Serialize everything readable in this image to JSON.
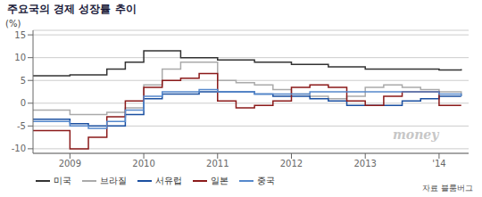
{
  "chart_data": {
    "type": "step",
    "title": "주요국의 경제 성장률 추이",
    "y_label": "(%)",
    "annotations": [
      "자료 블룸버그",
      "money"
    ],
    "xlim": [
      2008.5,
      2014.4
    ],
    "xticks": [
      2009,
      2010,
      2011,
      2012,
      2013,
      {
        "value": 2014,
        "label": "'14"
      }
    ],
    "ylim": [
      -11,
      16
    ],
    "yticks": [
      -10,
      -5,
      0,
      5,
      10,
      15
    ],
    "grid": true,
    "legend": "bottom",
    "series": [
      {
        "name": "미국",
        "color": "#333333",
        "x": [
          2008.5,
          2009.0,
          2009.5,
          2009.75,
          2010.0,
          2010.5,
          2011.0,
          2011.5,
          2012.0,
          2012.5,
          2013.0,
          2013.5,
          2014.0,
          2014.3
        ],
        "values": [
          6.0,
          6.2,
          7.5,
          9.0,
          11.5,
          10.0,
          9.5,
          9.0,
          8.5,
          8.0,
          7.5,
          7.5,
          7.3,
          7.5
        ]
      },
      {
        "name": "브라질",
        "color": "#aaaaaa",
        "x": [
          2008.5,
          2009.0,
          2009.25,
          2009.5,
          2009.75,
          2010.0,
          2010.25,
          2010.5,
          2010.75,
          2011.0,
          2011.25,
          2011.5,
          2011.75,
          2012.0,
          2012.25,
          2012.5,
          2012.75,
          2013.0,
          2013.25,
          2013.5,
          2013.75,
          2014.0,
          2014.3
        ],
        "values": [
          -1.5,
          -2.5,
          -2.5,
          -2.0,
          -1.0,
          4.0,
          7.5,
          9.0,
          9.0,
          5.0,
          4.5,
          4.0,
          3.0,
          2.0,
          1.5,
          1.0,
          1.5,
          3.5,
          4.0,
          3.5,
          3.0,
          2.5,
          1.5
        ]
      },
      {
        "name": "서유럽",
        "color": "#1a4fa0",
        "x": [
          2008.5,
          2009.0,
          2009.25,
          2009.5,
          2009.75,
          2010.0,
          2010.25,
          2010.5,
          2010.75,
          2011.0,
          2011.25,
          2011.5,
          2011.75,
          2012.0,
          2012.25,
          2012.5,
          2012.75,
          2013.0,
          2013.25,
          2013.5,
          2013.75,
          2014.0,
          2014.3
        ],
        "values": [
          -3.5,
          -4.5,
          -5.0,
          -5.0,
          -2.5,
          1.0,
          2.0,
          2.0,
          2.5,
          2.5,
          2.5,
          2.0,
          1.5,
          1.5,
          1.0,
          0.5,
          -0.5,
          -0.5,
          -0.5,
          0.5,
          1.0,
          1.5,
          1.5
        ]
      },
      {
        "name": "일본",
        "color": "#8b1a1a",
        "x": [
          2008.5,
          2009.0,
          2009.25,
          2009.5,
          2009.75,
          2010.0,
          2010.25,
          2010.5,
          2010.75,
          2011.0,
          2011.25,
          2011.5,
          2011.75,
          2012.0,
          2012.25,
          2012.5,
          2012.75,
          2013.0,
          2013.25,
          2013.5,
          2013.75,
          2014.0,
          2014.3
        ],
        "values": [
          -6.0,
          -10.0,
          -7.5,
          -3.0,
          0.5,
          3.5,
          5.0,
          5.5,
          6.5,
          0.5,
          -1.0,
          -0.5,
          0.5,
          3.5,
          4.0,
          3.5,
          0.5,
          -0.5,
          1.5,
          2.5,
          2.5,
          -0.5,
          -0.5
        ]
      },
      {
        "name": "중국",
        "color": "#5588cc",
        "x": [
          2008.5,
          2009.0,
          2009.25,
          2009.5,
          2009.75,
          2010.0,
          2010.25,
          2010.5,
          2010.75,
          2011.0,
          2011.25,
          2011.5,
          2011.75,
          2012.0,
          2012.25,
          2012.5,
          2012.75,
          2013.0,
          2013.25,
          2013.5,
          2013.75,
          2014.0,
          2014.3
        ],
        "values": [
          -4.0,
          -5.0,
          -5.5,
          -4.0,
          -1.5,
          1.5,
          2.5,
          2.5,
          3.0,
          2.5,
          2.5,
          2.0,
          2.0,
          2.0,
          2.5,
          2.5,
          2.5,
          2.5,
          2.5,
          2.5,
          2.5,
          2.0,
          1.5
        ]
      }
    ]
  }
}
